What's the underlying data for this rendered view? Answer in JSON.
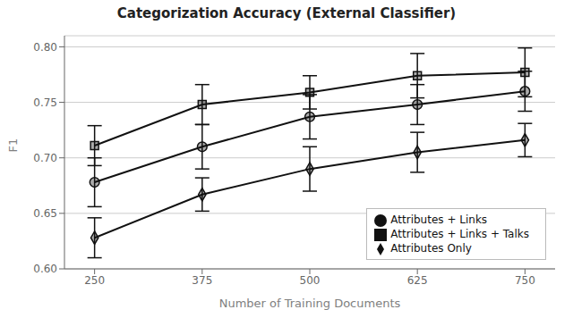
{
  "chart_data": {
    "type": "line",
    "title": "Categorization Accuracy (External Classifier)",
    "xlabel": "Number of Training Documents",
    "ylabel": "F1",
    "x": [
      250,
      375,
      500,
      625,
      750
    ],
    "series": [
      {
        "name": "Attributes Only",
        "color": "#111111",
        "marker": "diamond",
        "values": [
          0.628,
          0.667,
          0.69,
          0.705,
          0.716
        ],
        "errors": [
          0.018,
          0.015,
          0.02,
          0.018,
          0.015
        ]
      },
      {
        "name": "Attributes + Links",
        "color": "#111111",
        "marker": "circle",
        "values": [
          0.678,
          0.71,
          0.737,
          0.748,
          0.76
        ],
        "errors": [
          0.022,
          0.02,
          0.02,
          0.018,
          0.018
        ]
      },
      {
        "name": "Attributes + Links + Talks",
        "color": "#111111",
        "marker": "square",
        "values": [
          0.711,
          0.748,
          0.759,
          0.774,
          0.777
        ],
        "errors": [
          0.018,
          0.018,
          0.015,
          0.02,
          0.022
        ]
      }
    ],
    "xlim": [
      215,
      785
    ],
    "xticks": [
      250,
      375,
      500,
      625,
      750
    ],
    "ylim": [
      0.6,
      0.81
    ],
    "yticks": [
      {
        "value": 0.6,
        "label": "0.60"
      },
      0.65,
      {
        "value": 0.7,
        "label": "0.70"
      },
      0.75,
      {
        "value": 0.8,
        "label": "0.80"
      }
    ],
    "grid": true,
    "legend": "lower right"
  }
}
